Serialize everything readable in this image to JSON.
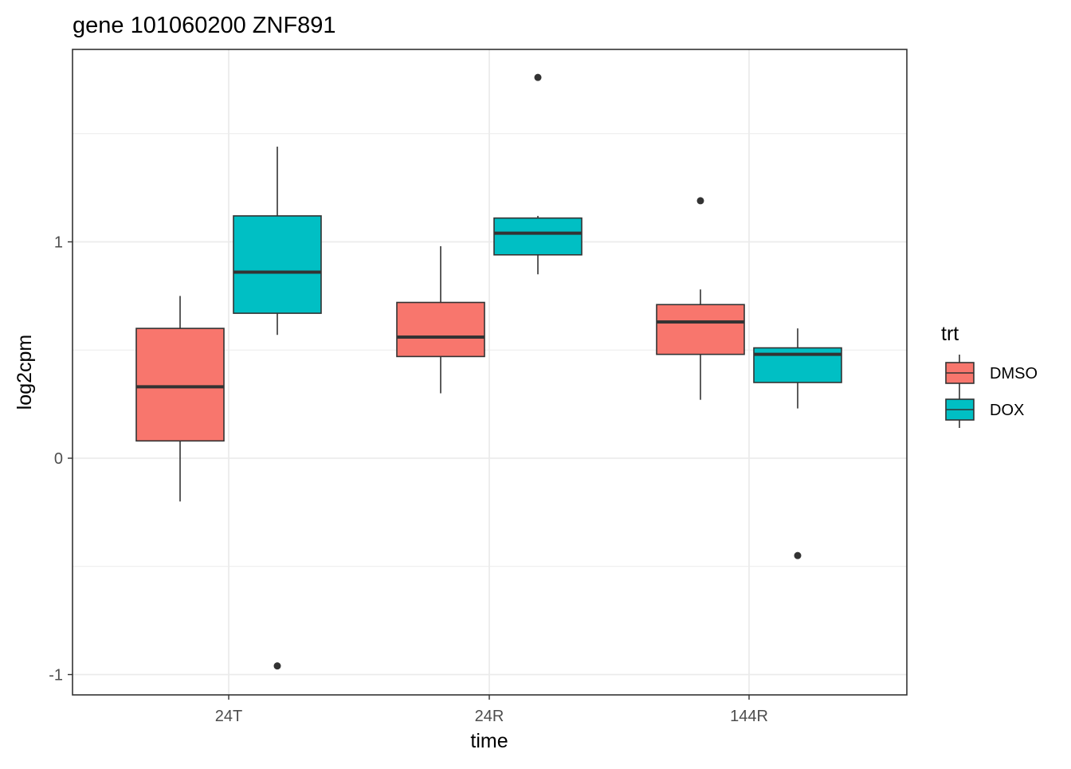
{
  "chart_data": {
    "type": "box",
    "title": "gene 101060200 ZNF891",
    "xlabel": "time",
    "ylabel": "log2cpm",
    "categories": [
      "24T",
      "24R",
      "144R"
    ],
    "ylim": [
      -1.1,
      1.85
    ],
    "y_ticks": [
      -1,
      0,
      1
    ],
    "y_tick_labels": [
      "-1",
      "0",
      "1"
    ],
    "grid": true,
    "legend": {
      "title": "trt",
      "position": "right"
    },
    "series": [
      {
        "name": "DMSO",
        "color": "#F8766D",
        "boxes": [
          {
            "category": "24T",
            "whisker_low": -0.2,
            "q1": 0.08,
            "median": 0.33,
            "q3": 0.6,
            "whisker_high": 0.75,
            "outliers": []
          },
          {
            "category": "24R",
            "whisker_low": 0.3,
            "q1": 0.47,
            "median": 0.56,
            "q3": 0.72,
            "whisker_high": 0.98,
            "outliers": []
          },
          {
            "category": "144R",
            "whisker_low": 0.27,
            "q1": 0.48,
            "median": 0.63,
            "q3": 0.71,
            "whisker_high": 0.78,
            "outliers": [
              1.19
            ]
          }
        ]
      },
      {
        "name": "DOX",
        "color": "#00BFC4",
        "boxes": [
          {
            "category": "24T",
            "whisker_low": 0.57,
            "q1": 0.67,
            "median": 0.86,
            "q3": 1.12,
            "whisker_high": 1.44,
            "outliers": [
              -0.96
            ]
          },
          {
            "category": "24R",
            "whisker_low": 0.85,
            "q1": 0.94,
            "median": 1.04,
            "q3": 1.11,
            "whisker_high": 1.12,
            "outliers": [
              1.76
            ]
          },
          {
            "category": "144R",
            "whisker_low": 0.23,
            "q1": 0.35,
            "median": 0.48,
            "q3": 0.51,
            "whisker_high": 0.6,
            "outliers": [
              -0.45
            ]
          }
        ]
      }
    ]
  }
}
